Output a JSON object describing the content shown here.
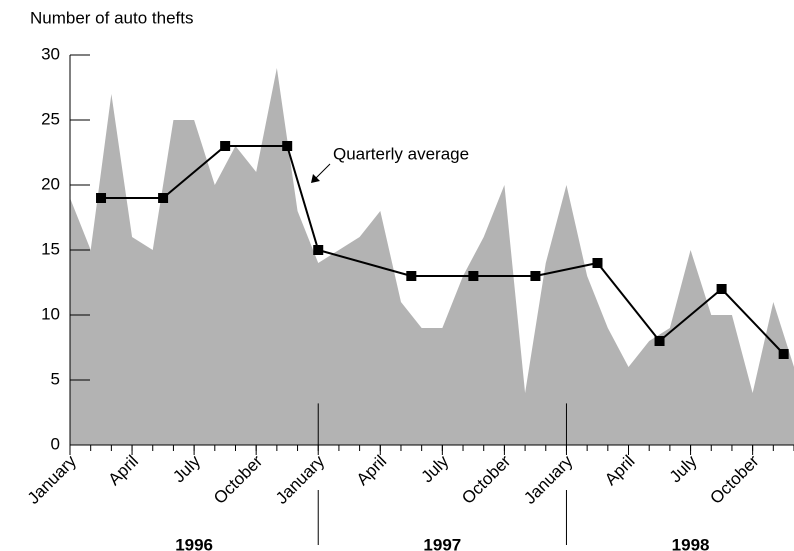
{
  "chart_data": {
    "type": "area",
    "y_label": "Number of auto thefts",
    "x": [
      0,
      1,
      2,
      3,
      4,
      5,
      6,
      7,
      8,
      9,
      10,
      11,
      12,
      13,
      14,
      15,
      16,
      17,
      18,
      19,
      20,
      21,
      22,
      23,
      24,
      25,
      26,
      27,
      28,
      29,
      30,
      31,
      32,
      33,
      34,
      35
    ],
    "values": [
      19,
      15,
      27,
      16,
      15,
      25,
      25,
      20,
      23,
      21,
      29,
      18,
      14,
      15,
      16,
      18,
      11,
      9,
      9,
      13,
      16,
      20,
      4,
      14,
      20,
      13,
      9,
      6,
      8,
      9,
      15,
      10,
      10,
      4,
      11,
      6
    ],
    "color": "#b3b3b3",
    "overlay": {
      "type": "line",
      "name": "Quarterly average",
      "color": "#000000",
      "x": [
        1.5,
        4.5,
        7.5,
        10.5,
        12,
        16.5,
        19.5,
        22.5,
        25.5,
        28.5,
        31.5,
        34.5
      ],
      "values": [
        19,
        19,
        23,
        23,
        15,
        13,
        13,
        13,
        14,
        8,
        12,
        7
      ]
    },
    "xlim": [
      0,
      35
    ],
    "xticks": [
      {
        "value": 0,
        "label": "January"
      },
      {
        "value": 3,
        "label": "April"
      },
      {
        "value": 6,
        "label": "July"
      },
      {
        "value": 9,
        "label": "October"
      },
      {
        "value": 12,
        "label": "January"
      },
      {
        "value": 15,
        "label": "April"
      },
      {
        "value": 18,
        "label": "July"
      },
      {
        "value": 21,
        "label": "October"
      },
      {
        "value": 24,
        "label": "January"
      },
      {
        "value": 27,
        "label": "April"
      },
      {
        "value": 30,
        "label": "July"
      },
      {
        "value": 33,
        "label": "October"
      }
    ],
    "groups": [
      {
        "label": "1996",
        "start": 0,
        "end": 12
      },
      {
        "label": "1997",
        "start": 12,
        "end": 24
      },
      {
        "label": "1998",
        "start": 24,
        "end": 36
      }
    ],
    "ylim": [
      0,
      30
    ],
    "yticks": [
      0,
      5,
      10,
      15,
      20,
      25,
      30
    ]
  }
}
